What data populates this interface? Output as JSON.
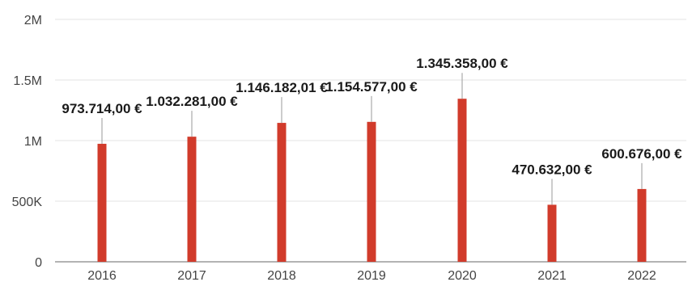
{
  "chart_data": {
    "type": "bar",
    "title": "",
    "xlabel": "",
    "ylabel": "",
    "categories": [
      "2016",
      "2017",
      "2018",
      "2019",
      "2020",
      "2021",
      "2022"
    ],
    "values": [
      973714,
      1032281,
      1146182.01,
      1154577,
      1345358,
      470632,
      600676
    ],
    "data_labels": [
      "973.714,00 €",
      "1.032.281,00 €",
      "1.146.182,01 €",
      "1.154.577,00 €",
      "1.345.358,00 €",
      "470.632,00 €",
      "600.676,00 €"
    ],
    "ylim": [
      0,
      2000000
    ],
    "y_ticks": [
      {
        "value": 0,
        "label": "0"
      },
      {
        "value": 500000,
        "label": "500K"
      },
      {
        "value": 1000000,
        "label": "1M"
      },
      {
        "value": 1500000,
        "label": "1.5M"
      },
      {
        "value": 2000000,
        "label": "2M"
      }
    ],
    "grid": true,
    "legend": "none",
    "bar_color": "#d13b2b"
  }
}
